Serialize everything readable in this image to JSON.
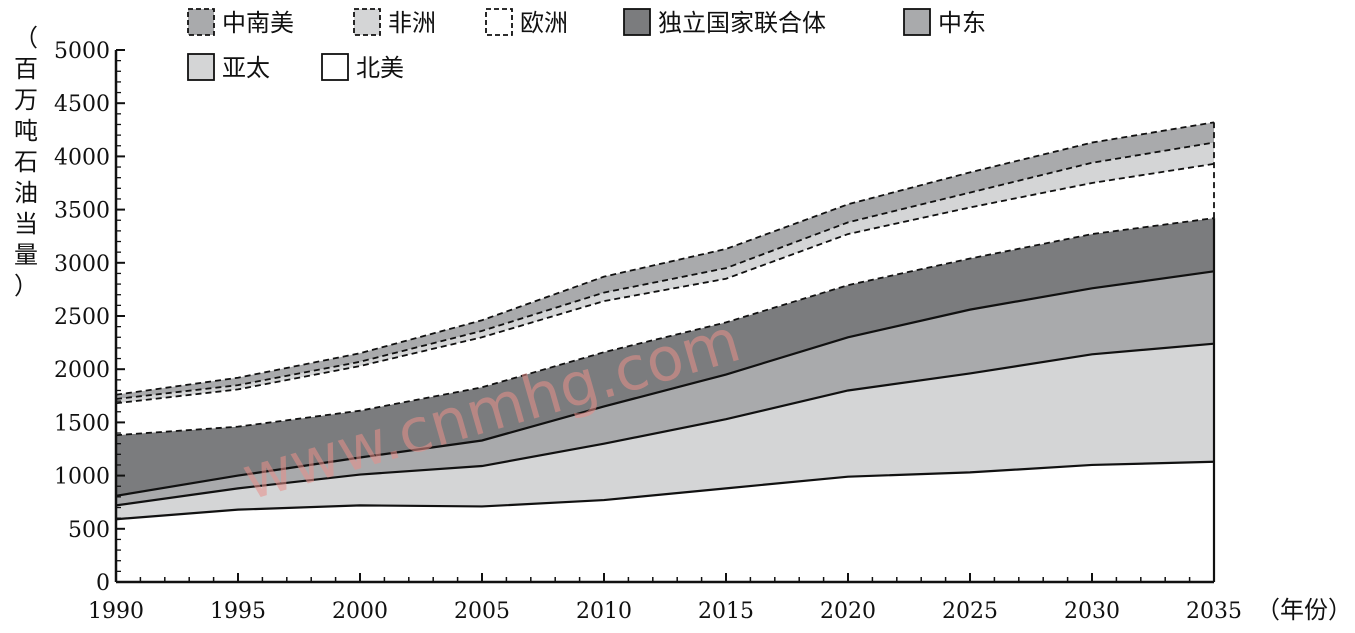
{
  "chart_data": {
    "type": "area",
    "stacked": true,
    "x": [
      1990,
      1995,
      2000,
      2005,
      2010,
      2015,
      2020,
      2025,
      2030,
      2035
    ],
    "xlabel": "（年份）",
    "ylabel": "（百万吨石油当量）",
    "ylim": [
      0,
      5000
    ],
    "yticks": [
      0,
      500,
      1000,
      1500,
      2000,
      2500,
      3000,
      3500,
      4000,
      4500,
      5000
    ],
    "grid": false,
    "legend_position": "top",
    "series": [
      {
        "name": "北美",
        "values": [
          590,
          680,
          720,
          710,
          770,
          880,
          990,
          1030,
          1100,
          1130
        ],
        "fill": "#ffffff",
        "dashed": false
      },
      {
        "name": "亚太",
        "values": [
          130,
          200,
          290,
          380,
          530,
          650,
          810,
          930,
          1040,
          1110
        ],
        "fill": "#d4d5d6",
        "dashed": false
      },
      {
        "name": "中东",
        "values": [
          90,
          120,
          160,
          240,
          350,
          420,
          500,
          600,
          620,
          680
        ],
        "fill": "#a9aaac",
        "dashed": false
      },
      {
        "name": "独立国家联合体",
        "values": [
          570,
          460,
          440,
          500,
          510,
          490,
          490,
          480,
          510,
          500
        ],
        "fill": "#7b7c7e",
        "dashed": true
      },
      {
        "name": "欧洲",
        "values": [
          300,
          350,
          420,
          470,
          480,
          410,
          480,
          480,
          480,
          510
        ],
        "fill": "#ffffff",
        "dashed": true
      },
      {
        "name": "非洲",
        "values": [
          40,
          40,
          40,
          60,
          80,
          100,
          110,
          140,
          190,
          200
        ],
        "fill": "#d4d5d6",
        "dashed": true
      },
      {
        "name": "中南美",
        "values": [
          40,
          70,
          80,
          100,
          150,
          180,
          170,
          190,
          190,
          190
        ],
        "fill": "#a9aaac",
        "dashed": true
      }
    ],
    "legend_order": [
      "中南美",
      "非洲",
      "欧洲",
      "独立国家联合体",
      "中东",
      "亚太",
      "北美"
    ],
    "annotations": [
      "www.cnmhg.com"
    ]
  }
}
